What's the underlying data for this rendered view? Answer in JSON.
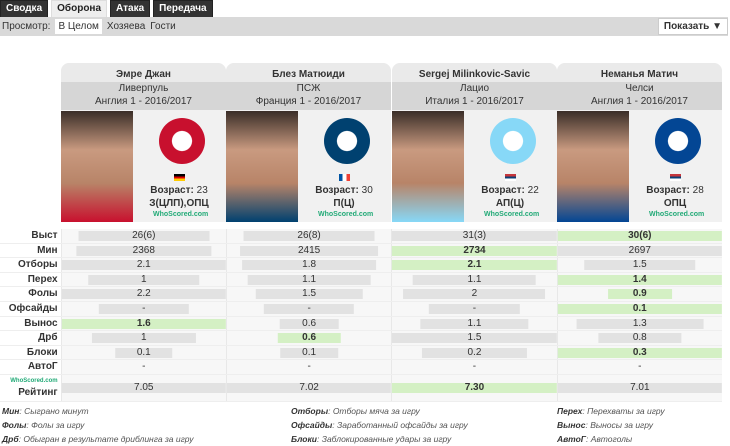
{
  "tabs": [
    "Сводка",
    "Оборона",
    "Атака",
    "Передача"
  ],
  "active_tab": 1,
  "view": {
    "label": "Просмотр:",
    "options": [
      "В Целом",
      "Хозяева",
      "Гости"
    ],
    "selected": 0
  },
  "show_button": "Показать ▼",
  "age_label": "Возраст:",
  "players": [
    {
      "name": "Эмре Джан",
      "club": "Ливерпуль",
      "league": "Англия 1 - 2016/2017",
      "age": "23",
      "position": "З(ЦЛП),ОПЦ",
      "crest_color": "#c8102e",
      "flag": [
        "#000",
        "#d00",
        "#fc0"
      ]
    },
    {
      "name": "Блез Матюиди",
      "club": "ПСЖ",
      "league": "Франция 1 - 2016/2017",
      "age": "30",
      "position": "П(Ц)",
      "crest_color": "#004170",
      "flag": [
        "#0055a4",
        "#fff",
        "#ef4135"
      ]
    },
    {
      "name": "Sergej Milinkovic-Savic",
      "club": "Лацио",
      "league": "Италия 1 - 2016/2017",
      "age": "22",
      "position": "АП(Ц)",
      "crest_color": "#87d8f7",
      "flag": [
        "#c6363c",
        "#0c4076",
        "#fff"
      ]
    },
    {
      "name": "Неманья Матич",
      "club": "Челси",
      "league": "Англия 1 - 2016/2017",
      "age": "28",
      "position": "ОПЦ",
      "crest_color": "#034694",
      "flag": [
        "#c6363c",
        "#0c4076",
        "#fff"
      ]
    }
  ],
  "whoscored": "WhoScored.com",
  "stats": [
    {
      "label": "Выст",
      "values": [
        "26(6)",
        "26(8)",
        "31(3)",
        "30(6)"
      ],
      "best": [
        3
      ]
    },
    {
      "label": "Мин",
      "values": [
        "2368",
        "2415",
        "2734",
        "2697"
      ],
      "best": [
        2
      ]
    },
    {
      "label": "Отборы",
      "values": [
        "2.1",
        "1.8",
        "2.1",
        "1.5"
      ],
      "best": [
        2
      ]
    },
    {
      "label": "Перех",
      "values": [
        "1",
        "1.1",
        "1.1",
        "1.4"
      ],
      "best": [
        3
      ]
    },
    {
      "label": "Фолы",
      "values": [
        "2.2",
        "1.5",
        "2",
        "0.9"
      ],
      "best": [
        3
      ]
    },
    {
      "label": "Офсайды",
      "values": [
        "-",
        "-",
        "-",
        "0.1"
      ],
      "best": [
        3
      ]
    },
    {
      "label": "Вынос",
      "values": [
        "1.6",
        "0.6",
        "1.1",
        "1.3"
      ],
      "best": [
        0
      ]
    },
    {
      "label": "Дрб",
      "values": [
        "1",
        "0.6",
        "1.5",
        "0.8"
      ],
      "best": [
        1
      ]
    },
    {
      "label": "Блоки",
      "values": [
        "0.1",
        "0.1",
        "0.2",
        "0.3"
      ],
      "best": [
        3
      ]
    },
    {
      "label": "АвтоГ",
      "values": [
        "-",
        "-",
        "-",
        "-"
      ],
      "best": []
    },
    {
      "label": "Рейтинг",
      "values": [
        "7.05",
        "7.02",
        "7.30",
        "7.01"
      ],
      "best": [
        2
      ]
    }
  ],
  "legend": [
    [
      {
        "k": "Мин",
        "d": "Сыграно минут"
      },
      {
        "k": "Фолы",
        "d": "Фолы за игру"
      },
      {
        "k": "Дрб",
        "d": "Обыгран в результате дриблинга за игру"
      }
    ],
    [
      {
        "k": "Отборы",
        "d": "Отборы мяча за игру"
      },
      {
        "k": "Офсайды",
        "d": "Заработанный офсайды за игру"
      },
      {
        "k": "Блоки",
        "d": "Заблокированные удары за игру"
      }
    ],
    [
      {
        "k": "Перех",
        "d": "Перехваты за игру"
      },
      {
        "k": "Вынос",
        "d": "Выносы за игру"
      },
      {
        "k": "АвтоГ",
        "d": "Автоголы"
      }
    ]
  ]
}
